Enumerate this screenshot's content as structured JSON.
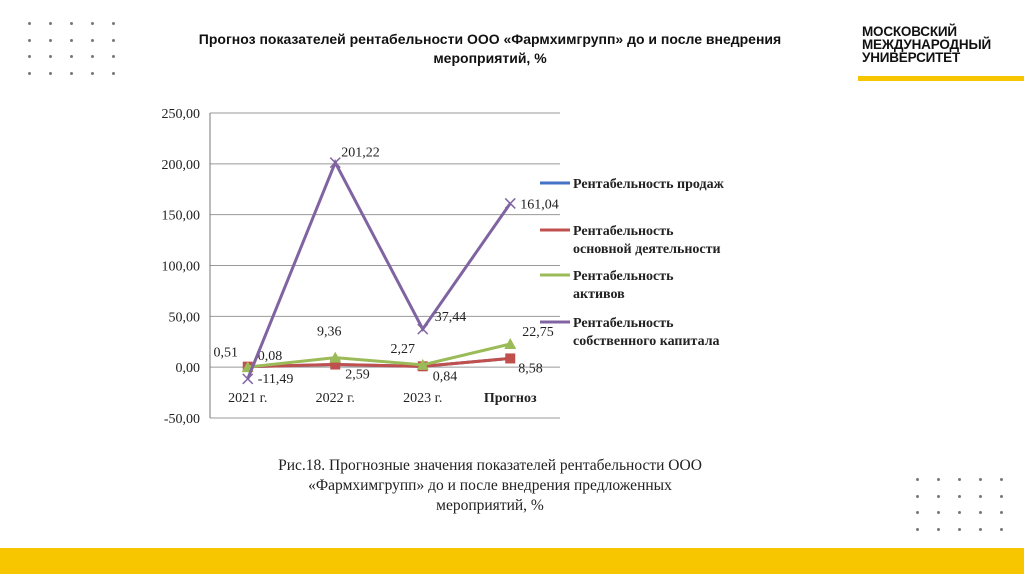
{
  "header": {
    "title": "Прогноз показателей рентабельности ООО «Фармхимгрупп» до и после внедрения мероприятий, %"
  },
  "logo": {
    "lines": [
      "МОСКОВСКИЙ",
      "МЕЖДУНАРОДНЫЙ",
      "УНИВЕРСИТЕТ"
    ]
  },
  "caption": "Рис.18. Прогнозные значения показателей рентабельности ООО «Фармхимгрупп» до и после внедрения предложенных мероприятий, %",
  "chart_data": {
    "type": "line",
    "categories": [
      "2021 г.",
      "2022 г.",
      "2023 г.",
      "Прогноз"
    ],
    "ylim": [
      -50,
      250
    ],
    "yticks": [
      "-50,00",
      "0,00",
      "50,00",
      "100,00",
      "150,00",
      "200,00",
      "250,00"
    ],
    "grid": true,
    "legend": "right",
    "series": [
      {
        "name": "Рентабельность продаж",
        "color": "#4472c4",
        "marker": "diamond",
        "values": [
          0.51,
          2.59,
          0.84,
          8.58
        ],
        "labels": null
      },
      {
        "name": "Рентабельность основной деятельности",
        "color": "#c0504d",
        "marker": "square",
        "values": [
          0.51,
          2.59,
          0.84,
          8.58
        ],
        "labels": [
          "0,51",
          "2,59",
          "0,84",
          "8,58"
        ]
      },
      {
        "name": "Рентабельность активов",
        "color": "#9bbb59",
        "marker": "triangle",
        "values": [
          0.08,
          9.36,
          2.27,
          22.75
        ],
        "labels": [
          "0,08",
          "9,36",
          "2,27",
          "22,75"
        ]
      },
      {
        "name": "Рентабельность собственного капитала",
        "color": "#8064a2",
        "marker": "x",
        "values": [
          -11.49,
          201.22,
          37.44,
          161.04
        ],
        "labels": [
          "-11,49",
          "201,22",
          "37,44",
          "161,04"
        ]
      }
    ]
  }
}
